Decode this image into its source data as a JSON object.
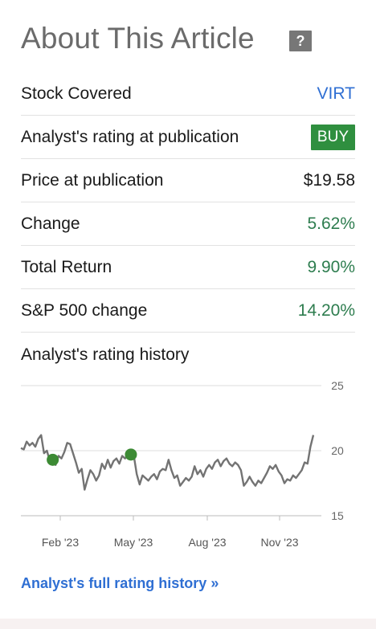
{
  "header": {
    "title": "About This Article",
    "help_icon": "question-icon"
  },
  "rows": [
    {
      "label": "Stock Covered",
      "value": "VIRT",
      "style": "link"
    },
    {
      "label": "Analyst's rating at publication",
      "value": "BUY",
      "style": "badge"
    },
    {
      "label": "Price at publication",
      "value": "$19.58",
      "style": "plain"
    },
    {
      "label": "Change",
      "value": "5.62%",
      "style": "green"
    },
    {
      "label": "Total Return",
      "value": "9.90%",
      "style": "green"
    },
    {
      "label": "S&P 500 change",
      "value": "14.20%",
      "style": "green"
    }
  ],
  "history": {
    "label": "Analyst's rating history"
  },
  "link": {
    "label": "Analyst's full rating history »"
  },
  "colors": {
    "accent": "#2f6fd3",
    "positive": "#2e7d4f",
    "badge": "#2f8f3f",
    "line": "#737373",
    "marker": "#3c8a34"
  },
  "chart_data": {
    "type": "line",
    "y_ticks": [
      "25",
      "20",
      "15"
    ],
    "ylim": [
      15,
      25
    ],
    "x_ticks": [
      "Feb '23",
      "May '23",
      "Aug '23",
      "Nov '23"
    ],
    "series": [
      {
        "values": [
          20.2,
          20.1,
          20.7,
          20.4,
          20.6,
          20.3,
          20.9,
          21.2,
          19.8,
          20.0,
          19.2,
          19.3,
          18.9,
          19.6,
          19.4,
          19.9,
          20.6,
          20.5,
          19.8,
          19.1,
          18.3,
          18.6,
          17.0,
          17.8,
          18.5,
          18.2,
          17.7,
          18.1,
          19.0,
          18.6,
          19.3,
          18.7,
          19.2,
          19.4,
          19.0,
          19.6,
          19.4,
          19.7,
          19.8,
          19.6,
          18.2,
          17.4,
          18.1,
          17.9,
          17.7,
          18.0,
          18.2,
          17.8,
          18.4,
          18.6,
          18.5,
          19.3,
          18.5,
          17.9,
          18.1,
          17.3,
          17.6,
          17.9,
          17.7,
          18.0,
          18.8,
          18.2,
          18.5,
          18.0,
          18.6,
          18.9,
          18.6,
          19.1,
          19.3,
          18.8,
          19.2,
          19.4,
          19.0,
          18.8,
          19.1,
          18.9,
          18.5,
          17.3,
          17.6,
          18.0,
          17.6,
          17.3,
          17.7,
          17.5,
          17.9,
          18.3,
          18.8,
          18.6,
          18.9,
          18.4,
          18.1,
          17.5,
          17.8,
          17.7,
          18.1,
          17.9,
          18.2,
          18.5,
          19.1,
          19.0,
          20.3,
          21.2
        ]
      }
    ],
    "markers": [
      {
        "index": 11,
        "value": 19.3,
        "label": "BUY"
      },
      {
        "index": 38,
        "value": 19.7,
        "label": "BUY"
      }
    ]
  }
}
